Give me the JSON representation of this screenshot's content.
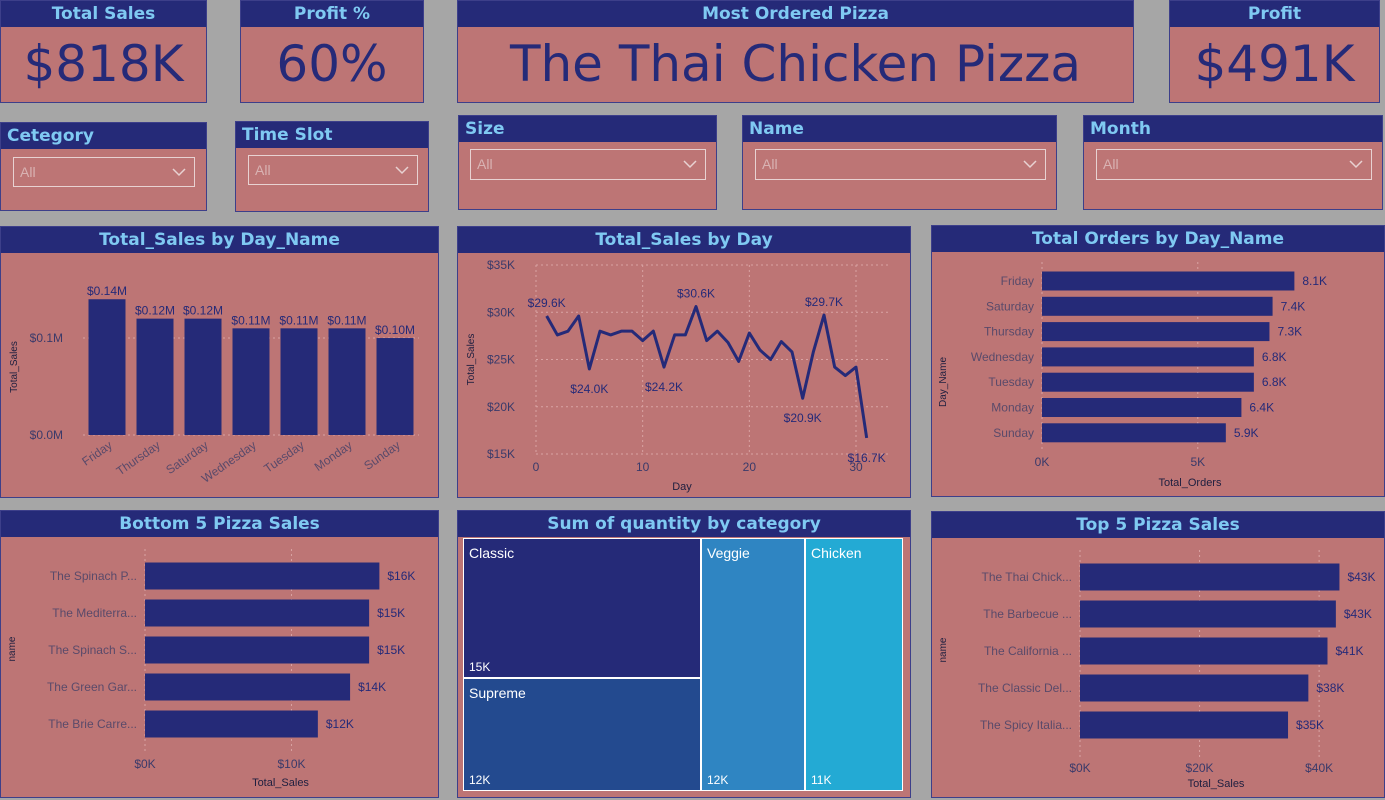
{
  "kpis": {
    "total_sales": {
      "title": "Total Sales",
      "value": "$818K"
    },
    "profit_pct": {
      "title": "Profit %",
      "value": "60%"
    },
    "most_ordered": {
      "title": "Most Ordered Pizza",
      "value": "The Thai Chicken Pizza"
    },
    "profit": {
      "title": "Profit",
      "value": "$491K"
    }
  },
  "slicers": {
    "category": {
      "title": "Cetegory",
      "value": "All"
    },
    "time_slot": {
      "title": "Time Slot",
      "value": "All"
    },
    "size": {
      "title": "Size",
      "value": "All"
    },
    "name": {
      "title": "Name",
      "value": "All"
    },
    "month": {
      "title": "Month",
      "value": "All"
    }
  },
  "colors": {
    "card": "#bd7575",
    "header": "#252a78",
    "header_text": "#7fc9f2",
    "bar": "#252a78",
    "background": "#a6a6a6"
  },
  "icons": {
    "dropdown": "chevron-down-icon"
  },
  "chart_data": [
    {
      "id": "sales_by_day_name",
      "type": "bar",
      "title": "Total_Sales by Day_Name",
      "xlabel": "Day_Name",
      "ylabel": "Total_Sales",
      "categories": [
        "Friday",
        "Thursday",
        "Saturday",
        "Wednesday",
        "Tuesday",
        "Monday",
        "Sunday"
      ],
      "values": [
        0.14,
        0.12,
        0.12,
        0.11,
        0.11,
        0.11,
        0.1
      ],
      "labels": [
        "$0.14M",
        "$0.12M",
        "$0.12M",
        "$0.11M",
        "$0.11M",
        "$0.11M",
        "$0.10M"
      ],
      "yticks": [
        0.0,
        0.1
      ],
      "ytick_labels": [
        "$0.0M",
        "$0.1M"
      ],
      "ylim": [
        0,
        0.165
      ],
      "grid": true
    },
    {
      "id": "sales_by_day",
      "type": "line",
      "title": "Total_Sales by Day",
      "xlabel": "Day",
      "ylabel": "Total_Sales",
      "x": [
        1,
        2,
        3,
        4,
        5,
        6,
        7,
        8,
        9,
        10,
        11,
        12,
        13,
        14,
        15,
        16,
        17,
        18,
        19,
        20,
        21,
        22,
        23,
        24,
        25,
        26,
        27,
        28,
        29,
        30,
        31
      ],
      "values": [
        29.6,
        27.6,
        28.0,
        29.6,
        24.0,
        28.0,
        27.6,
        28.0,
        28.0,
        27.0,
        28.0,
        24.2,
        27.6,
        27.6,
        30.6,
        27.0,
        28.0,
        26.8,
        24.8,
        27.8,
        26.0,
        25.0,
        26.9,
        25.8,
        20.9,
        25.8,
        29.7,
        24.2,
        23.3,
        24.2,
        16.7
      ],
      "annotations": [
        {
          "day": 1,
          "label": "$29.6K"
        },
        {
          "day": 5,
          "label": "$24.0K"
        },
        {
          "day": 12,
          "label": "$24.2K"
        },
        {
          "day": 15,
          "label": "$30.6K"
        },
        {
          "day": 25,
          "label": "$20.9K"
        },
        {
          "day": 27,
          "label": "$29.7K"
        },
        {
          "day": 31,
          "label": "$16.7K"
        }
      ],
      "yticks": [
        15,
        20,
        25,
        30,
        35
      ],
      "ytick_labels": [
        "$15K",
        "$20K",
        "$25K",
        "$30K",
        "$35K"
      ],
      "xticks": [
        0,
        10,
        20,
        30
      ],
      "xlim": [
        0,
        33
      ],
      "ylim": [
        15,
        35
      ],
      "grid": true
    },
    {
      "id": "orders_by_day_name",
      "type": "bar",
      "orientation": "horizontal",
      "title": "Total Orders by Day_Name",
      "xlabel": "Total_Orders",
      "ylabel": "Day_Name",
      "categories": [
        "Friday",
        "Saturday",
        "Thursday",
        "Wednesday",
        "Tuesday",
        "Monday",
        "Sunday"
      ],
      "values": [
        8.1,
        7.4,
        7.3,
        6.8,
        6.8,
        6.4,
        5.9
      ],
      "labels": [
        "8.1K",
        "7.4K",
        "7.3K",
        "6.8K",
        "6.8K",
        "6.4K",
        "5.9K"
      ],
      "xticks": [
        0,
        5
      ],
      "xtick_labels": [
        "0K",
        "5K"
      ],
      "xlim": [
        0,
        9.5
      ],
      "grid": true
    },
    {
      "id": "bottom5",
      "type": "bar",
      "orientation": "horizontal",
      "title": "Bottom 5 Pizza Sales",
      "xlabel": "Total_Sales",
      "ylabel": "name",
      "categories": [
        "The Spinach P...",
        "The Mediterra...",
        "The Spinach S...",
        "The Green Gar...",
        "The Brie Carre..."
      ],
      "values": [
        16,
        15.3,
        15.3,
        14,
        11.8
      ],
      "labels": [
        "$16K",
        "$15K",
        "$15K",
        "$14K",
        "$12K"
      ],
      "xticks": [
        0,
        10
      ],
      "xtick_labels": [
        "$0K",
        "$10K"
      ],
      "xlim": [
        0,
        18.5
      ],
      "grid": true
    },
    {
      "id": "quantity_by_category",
      "type": "treemap",
      "title": "Sum of quantity by category",
      "items": [
        {
          "name": "Classic",
          "value": "15K",
          "color": "#252a78"
        },
        {
          "name": "Supreme",
          "value": "12K",
          "color": "#234a8f"
        },
        {
          "name": "Veggie",
          "value": "12K",
          "color": "#2f85c2"
        },
        {
          "name": "Chicken",
          "value": "11K",
          "color": "#23aad4"
        }
      ]
    },
    {
      "id": "top5",
      "type": "bar",
      "orientation": "horizontal",
      "title": "Top 5 Pizza Sales",
      "xlabel": "Total_Sales",
      "ylabel": "name",
      "categories": [
        "The Thai Chick...",
        "The Barbecue ...",
        "The California ...",
        "The Classic Del...",
        "The Spicy Italia..."
      ],
      "values": [
        43.4,
        42.8,
        41.4,
        38.2,
        34.8
      ],
      "labels": [
        "$43K",
        "$43K",
        "$41K",
        "$38K",
        "$35K"
      ],
      "xticks": [
        0,
        20,
        40
      ],
      "xtick_labels": [
        "$0K",
        "$20K",
        "$40K"
      ],
      "xlim": [
        0,
        45.5
      ],
      "grid": true
    }
  ]
}
